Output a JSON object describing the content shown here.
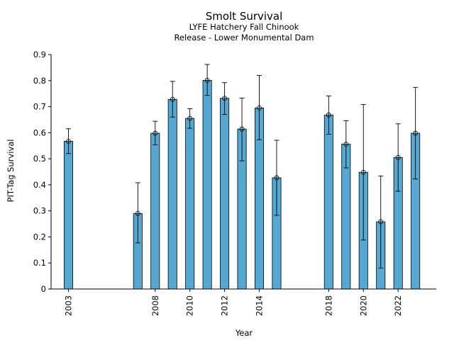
{
  "chart_data": {
    "type": "bar",
    "title": "Smolt Survival",
    "subtitle_lines": [
      "LYFE Hatchery Fall Chinook",
      "Release - Lower Monumental Dam"
    ],
    "xlabel": "Year",
    "ylabel": "PIT-Tag Survival",
    "xlim": [
      2002,
      2024.2
    ],
    "ylim": [
      0,
      0.9
    ],
    "yticks": [
      0,
      0.1,
      0.2,
      0.3,
      0.4,
      0.5,
      0.6,
      0.7,
      0.8,
      0.9
    ],
    "ytick_labels": [
      "0",
      "0.1",
      "0.2",
      "0.3",
      "0.4",
      "0.5",
      "0.6",
      "0.7",
      "0.8",
      "0.9"
    ],
    "xticks": [
      2003,
      2008,
      2010,
      2012,
      2014,
      2018,
      2020,
      2022
    ],
    "xtick_labels": [
      "2003",
      "2008",
      "2010",
      "2012",
      "2014",
      "2018",
      "2020",
      "2022"
    ],
    "bar_color": "#55a8d2",
    "bars": [
      {
        "year": 2003,
        "value": 0.567,
        "lower": 0.52,
        "upper": 0.615
      },
      {
        "year": 2007,
        "value": 0.29,
        "lower": 0.177,
        "upper": 0.408
      },
      {
        "year": 2008,
        "value": 0.598,
        "lower": 0.553,
        "upper": 0.644
      },
      {
        "year": 2009,
        "value": 0.728,
        "lower": 0.66,
        "upper": 0.797
      },
      {
        "year": 2010,
        "value": 0.655,
        "lower": 0.617,
        "upper": 0.692
      },
      {
        "year": 2011,
        "value": 0.801,
        "lower": 0.743,
        "upper": 0.862
      },
      {
        "year": 2012,
        "value": 0.732,
        "lower": 0.67,
        "upper": 0.792
      },
      {
        "year": 2013,
        "value": 0.614,
        "lower": 0.492,
        "upper": 0.733
      },
      {
        "year": 2014,
        "value": 0.695,
        "lower": 0.573,
        "upper": 0.82
      },
      {
        "year": 2015,
        "value": 0.427,
        "lower": 0.283,
        "upper": 0.571
      },
      {
        "year": 2018,
        "value": 0.668,
        "lower": 0.594,
        "upper": 0.741
      },
      {
        "year": 2019,
        "value": 0.556,
        "lower": 0.465,
        "upper": 0.646
      },
      {
        "year": 2020,
        "value": 0.448,
        "lower": 0.188,
        "upper": 0.708
      },
      {
        "year": 2021,
        "value": 0.258,
        "lower": 0.08,
        "upper": 0.434
      },
      {
        "year": 2022,
        "value": 0.505,
        "lower": 0.375,
        "upper": 0.634
      },
      {
        "year": 2023,
        "value": 0.598,
        "lower": 0.422,
        "upper": 0.774
      }
    ]
  }
}
